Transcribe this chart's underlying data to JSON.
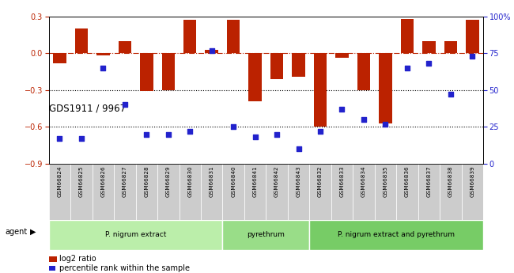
{
  "title": "GDS1911 / 9967",
  "samples": [
    "GSM66824",
    "GSM66825",
    "GSM66826",
    "GSM66827",
    "GSM66828",
    "GSM66829",
    "GSM66830",
    "GSM66831",
    "GSM66840",
    "GSM66841",
    "GSM66842",
    "GSM66843",
    "GSM66832",
    "GSM66833",
    "GSM66834",
    "GSM66835",
    "GSM66836",
    "GSM66837",
    "GSM66838",
    "GSM66839"
  ],
  "log2_ratio": [
    -0.08,
    0.2,
    -0.02,
    0.1,
    -0.31,
    -0.3,
    0.27,
    0.03,
    0.27,
    -0.39,
    -0.21,
    -0.19,
    -0.6,
    -0.04,
    -0.3,
    -0.57,
    0.28,
    0.1,
    0.1,
    0.27
  ],
  "percentile": [
    17,
    17,
    65,
    40,
    20,
    20,
    22,
    77,
    25,
    18,
    20,
    10,
    22,
    37,
    30,
    27,
    65,
    68,
    47,
    73
  ],
  "groups": [
    {
      "label": "P. nigrum extract",
      "start": 0,
      "end": 8,
      "color": "#bbeeaa"
    },
    {
      "label": "pyrethrum",
      "start": 8,
      "end": 12,
      "color": "#99dd88"
    },
    {
      "label": "P. nigrum extract and pyrethrum",
      "start": 12,
      "end": 20,
      "color": "#77cc66"
    }
  ],
  "bar_color": "#bb2200",
  "dot_color": "#2222cc",
  "ylim_left": [
    -0.9,
    0.3
  ],
  "ylim_right": [
    0,
    100
  ],
  "yticks_left": [
    0.3,
    0.0,
    -0.3,
    -0.6,
    -0.9
  ],
  "yticks_right": [
    100,
    75,
    50,
    25,
    0
  ],
  "right_tick_labels": [
    "100%",
    "75",
    "50",
    "25",
    "0"
  ],
  "hline_y": 0.0,
  "dotted_lines": [
    -0.3,
    -0.6
  ],
  "sample_bg": "#cccccc",
  "agent_label": "agent",
  "legend_items": [
    {
      "color": "#bb2200",
      "label": "log2 ratio"
    },
    {
      "color": "#2222cc",
      "label": "percentile rank within the sample"
    }
  ]
}
